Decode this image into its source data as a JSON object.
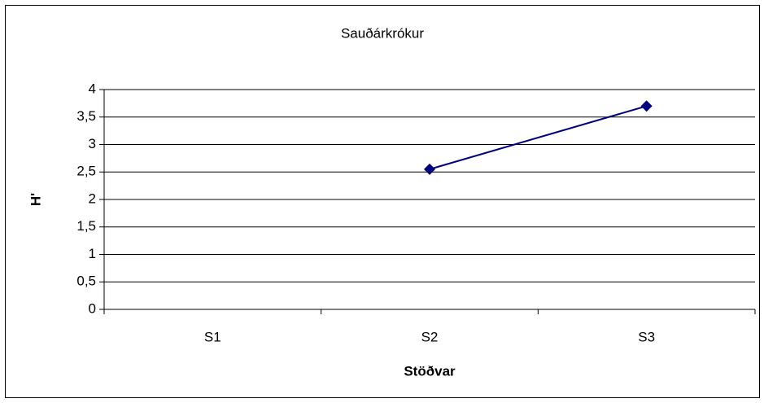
{
  "chart_data": {
    "type": "line",
    "title": "Sauðárkrókur",
    "xlabel": "Stöðvar",
    "ylabel": "H'",
    "categories": [
      "S1",
      "S2",
      "S3"
    ],
    "series": [
      {
        "name": "H'",
        "color": "#000080",
        "values": [
          null,
          2.55,
          3.7
        ]
      }
    ],
    "ylim": [
      0,
      4
    ],
    "yticks": [
      0,
      {
        "value": 0.5,
        "label": "0,5"
      },
      1,
      {
        "value": 1.5,
        "label": "1,5"
      },
      2,
      {
        "value": 2.5,
        "label": "2,5"
      },
      3,
      {
        "value": 3.5,
        "label": "3,5"
      },
      4
    ],
    "grid": true
  }
}
